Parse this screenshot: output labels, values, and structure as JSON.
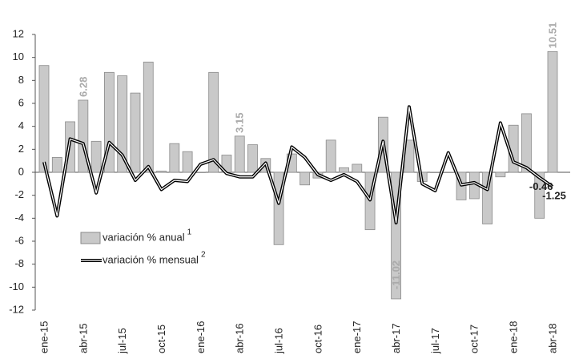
{
  "chart_data": {
    "type": "bar-line",
    "categories": [
      "ene-15",
      null,
      null,
      "abr-15",
      null,
      null,
      "jul-15",
      null,
      null,
      "oct-15",
      null,
      null,
      "ene-16",
      null,
      null,
      "abr-16",
      null,
      null,
      "jul-16",
      null,
      null,
      "oct-16",
      null,
      null,
      "ene-17",
      null,
      null,
      "abr-17",
      null,
      null,
      "jul-17",
      null,
      null,
      "oct-17",
      null,
      null,
      "ene-18",
      null,
      null,
      "abr-18"
    ],
    "series": [
      {
        "name": "variación % anual",
        "footnote": "1",
        "kind": "bar",
        "color": "#c9c9c9",
        "values": [
          9.3,
          1.3,
          4.4,
          6.28,
          2.7,
          8.7,
          8.4,
          6.9,
          9.6,
          0.1,
          2.5,
          1.8,
          0,
          8.7,
          1.5,
          3.15,
          2.4,
          1.2,
          -6.3,
          1.6,
          -1.1,
          -0.5,
          2.8,
          0.4,
          0.7,
          -5.0,
          4.8,
          -11.02,
          2.8,
          -0.8,
          0,
          0,
          -2.4,
          -2.3,
          -4.5,
          -0.4,
          4.1,
          5.1,
          -4.0,
          10.51
        ],
        "value_labels": [
          null,
          null,
          null,
          "6.28",
          null,
          null,
          null,
          null,
          null,
          null,
          null,
          null,
          null,
          null,
          null,
          "3.15",
          null,
          null,
          null,
          null,
          null,
          null,
          null,
          null,
          null,
          null,
          null,
          "-11.02",
          null,
          null,
          null,
          null,
          null,
          null,
          null,
          null,
          null,
          null,
          null,
          "10.51"
        ]
      },
      {
        "name": "variación % mensual",
        "footnote": "2",
        "kind": "line",
        "color": "#000000",
        "values": [
          0.9,
          -3.8,
          2.9,
          2.5,
          -1.8,
          2.6,
          1.5,
          -0.7,
          0.5,
          -1.5,
          -0.7,
          -0.8,
          0.7,
          1.1,
          -0.1,
          -0.4,
          -0.4,
          0.8,
          -2.7,
          2.2,
          1.3,
          -0.2,
          -0.7,
          -0.2,
          -0.8,
          -2.4,
          2.7,
          -4.4,
          5.7,
          -1.0,
          -1.6,
          1.7,
          -1.1,
          -0.9,
          -1.5,
          4.3,
          0.9,
          0.4,
          -0.46,
          -1.25
        ],
        "value_labels": [
          null,
          null,
          null,
          null,
          null,
          null,
          null,
          null,
          null,
          null,
          null,
          null,
          null,
          null,
          null,
          null,
          null,
          null,
          null,
          null,
          null,
          null,
          null,
          null,
          null,
          null,
          null,
          null,
          null,
          null,
          null,
          null,
          null,
          null,
          null,
          null,
          null,
          null,
          "-0.46",
          "-1.25"
        ]
      }
    ],
    "ylim": [
      -12,
      12
    ],
    "yticks": [
      -12,
      -10,
      -8,
      -6,
      -4,
      -2,
      0,
      2,
      4,
      6,
      8,
      10,
      12
    ]
  }
}
